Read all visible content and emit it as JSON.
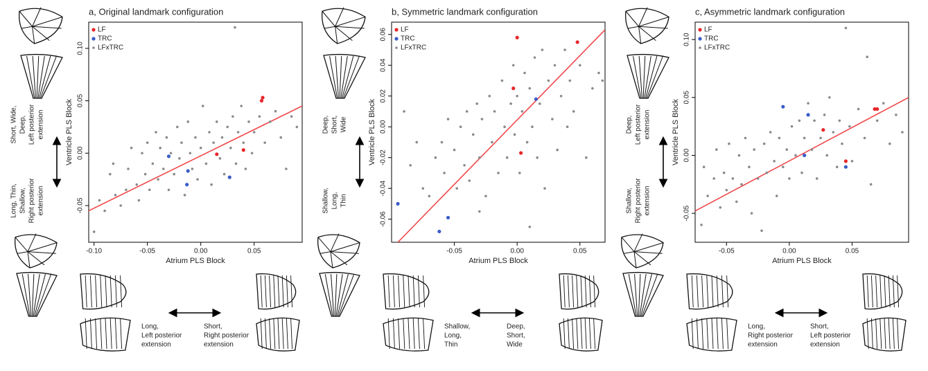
{
  "chart_data": [
    {
      "type": "scatter",
      "title": "a, Original landmark configuration",
      "xlabel": "Atrium PLS Block",
      "ylabel": "Ventricle PLS Block",
      "xlim": [
        -0.105,
        0.095
      ],
      "ylim": [
        -0.085,
        0.125
      ],
      "xticks": [
        {
          "value": -0.1,
          "label": "-0.10"
        },
        -0.05,
        {
          "value": 0,
          "label": "0.00"
        },
        0.05
      ],
      "yticks": [
        -0.05,
        {
          "value": 0,
          "label": "0.00"
        },
        0.05,
        {
          "value": 0.1,
          "label": "0.10"
        }
      ],
      "legend": "upper left",
      "series": [
        {
          "name": "LF",
          "color": "#e8262a",
          "x": [
            0.058,
            0.057,
            0.04,
            0.015
          ],
          "y": [
            0.053,
            0.05,
            0.003,
            -0.001
          ]
        },
        {
          "name": "TRC",
          "color": "#3a5cc9",
          "x": [
            -0.03,
            -0.012,
            -0.013,
            0.027
          ],
          "y": [
            -0.003,
            -0.017,
            -0.03,
            -0.023
          ]
        },
        {
          "name": "LFxTRC",
          "color": "#8a8a8a",
          "x": [
            -0.1,
            -0.095,
            -0.09,
            -0.085,
            -0.082,
            -0.08,
            -0.075,
            -0.07,
            -0.068,
            -0.065,
            -0.06,
            -0.058,
            -0.055,
            -0.052,
            -0.05,
            -0.048,
            -0.045,
            -0.042,
            -0.04,
            -0.038,
            -0.035,
            -0.032,
            -0.03,
            -0.028,
            -0.025,
            -0.022,
            -0.02,
            -0.018,
            -0.015,
            -0.012,
            -0.01,
            -0.008,
            -0.005,
            -0.003,
            0.0,
            0.002,
            0.005,
            0.008,
            0.01,
            0.012,
            0.015,
            0.018,
            0.02,
            0.022,
            0.025,
            0.028,
            0.03,
            0.032,
            0.033,
            0.035,
            0.038,
            0.04,
            0.042,
            0.045,
            0.048,
            0.05,
            0.055,
            0.06,
            0.065,
            0.07,
            0.075,
            0.08,
            0.085,
            0.09
          ],
          "y": [
            -0.075,
            -0.045,
            -0.055,
            -0.02,
            -0.01,
            -0.04,
            -0.05,
            -0.035,
            -0.015,
            0.005,
            -0.03,
            -0.045,
            0.0,
            -0.02,
            0.01,
            -0.035,
            -0.01,
            0.02,
            -0.025,
            0.005,
            -0.015,
            0.015,
            -0.035,
            0.0,
            -0.02,
            0.025,
            -0.005,
            0.01,
            -0.04,
            0.03,
            0.0,
            -0.015,
            0.015,
            -0.025,
            0.005,
            0.045,
            -0.01,
            0.02,
            -0.03,
            0.01,
            0.03,
            -0.005,
            0.015,
            -0.02,
            0.025,
            0.005,
            0.035,
            0.12,
            -0.01,
            0.02,
            0.045,
            0.01,
            -0.015,
            0.03,
            0.0,
            0.02,
            0.035,
            0.01,
            0.03,
            0.04,
            0.015,
            -0.015,
            0.035,
            0.025
          ]
        }
      ],
      "fit_line": {
        "color": "#f0484a",
        "x": [
          -0.105,
          0.095
        ],
        "y": [
          -0.055,
          0.045
        ]
      },
      "y_annotation_top": [
        "Short, Wide,",
        "Deep,",
        "Left posterior",
        "extension"
      ],
      "y_annotation_bottom": [
        "Long, Thin,",
        "Shallow,",
        "Right posterior",
        "extension"
      ],
      "x_annotation_left": [
        "Long,",
        "Left posterior",
        "extension"
      ],
      "x_annotation_right": [
        "Short,",
        "Right posterior",
        "extension"
      ]
    },
    {
      "type": "scatter",
      "title": "b, Symmetric landmark configuration",
      "xlabel": "Atrium PLS Block",
      "ylabel": "Ventricle PLS Block",
      "xlim": [
        -0.1,
        0.07
      ],
      "ylim": [
        -0.075,
        0.068
      ],
      "xticks": [
        -0.05,
        {
          "value": 0,
          "label": "0.00"
        },
        0.05
      ],
      "yticks": [
        -0.06,
        -0.04,
        -0.02,
        {
          "value": 0,
          "label": "0.00"
        },
        0.02,
        0.04,
        0.06
      ],
      "legend": "upper left",
      "series": [
        {
          "name": "LF",
          "color": "#e8262a",
          "x": [
            0.0,
            0.048,
            -0.003,
            0.003
          ],
          "y": [
            0.058,
            0.055,
            0.025,
            -0.017
          ]
        },
        {
          "name": "TRC",
          "color": "#3a5cc9",
          "x": [
            -0.095,
            -0.062,
            -0.055,
            0.015
          ],
          "y": [
            -0.05,
            -0.068,
            -0.059,
            0.018
          ]
        },
        {
          "name": "LFxTRC",
          "color": "#8a8a8a",
          "x": [
            -0.085,
            -0.08,
            -0.075,
            -0.07,
            -0.065,
            -0.06,
            -0.058,
            -0.055,
            -0.05,
            -0.048,
            -0.045,
            -0.042,
            -0.04,
            -0.038,
            -0.035,
            -0.032,
            -0.03,
            -0.028,
            -0.025,
            -0.022,
            -0.02,
            -0.018,
            -0.015,
            -0.012,
            -0.01,
            -0.008,
            -0.005,
            -0.003,
            -0.002,
            0.0,
            0.002,
            0.004,
            0.006,
            0.008,
            0.01,
            0.012,
            0.014,
            0.016,
            0.018,
            0.02,
            0.022,
            0.025,
            0.028,
            0.03,
            0.032,
            0.035,
            0.038,
            0.04,
            0.042,
            0.045,
            0.05,
            0.055,
            0.06,
            0.065,
            0.068,
            -0.09,
            -0.03,
            0.01
          ],
          "y": [
            -0.025,
            -0.01,
            -0.04,
            -0.045,
            -0.02,
            -0.01,
            -0.03,
            0.005,
            -0.015,
            -0.04,
            0.0,
            -0.025,
            0.01,
            -0.035,
            -0.005,
            0.015,
            -0.02,
            0.005,
            -0.045,
            0.02,
            -0.01,
            0.01,
            -0.03,
            0.03,
            0.0,
            -0.02,
            0.015,
            0.04,
            -0.005,
            0.02,
            -0.03,
            0.01,
            0.035,
            -0.01,
            0.025,
            0.0,
            0.045,
            -0.02,
            0.015,
            0.05,
            -0.04,
            0.03,
            0.005,
            0.04,
            -0.015,
            0.02,
            0.05,
            0.0,
            0.03,
            0.01,
            0.04,
            -0.02,
            0.025,
            0.035,
            0.03,
            0.01,
            -0.055,
            -0.065
          ]
        }
      ],
      "fit_line": {
        "color": "#f0484a",
        "x": [
          -0.095,
          0.07
        ],
        "y": [
          -0.075,
          0.063
        ]
      },
      "y_annotation_top": [
        "Deep,",
        "Short,",
        "Wide"
      ],
      "y_annotation_bottom": [
        "Shallow,",
        "Long,",
        "Thin"
      ],
      "x_annotation_left": [
        "Shallow,",
        "Long,",
        "Thin"
      ],
      "x_annotation_right": [
        "Deep,",
        "Short,",
        "Wide"
      ]
    },
    {
      "type": "scatter",
      "title": "c, Asymmetric landmark configuration",
      "xlabel": "Atrium PLS Block",
      "ylabel": "Ventricle PLS Block",
      "xlim": [
        -0.075,
        0.095
      ],
      "ylim": [
        -0.075,
        0.115
      ],
      "xticks": [
        -0.05,
        {
          "value": 0,
          "label": "0.00"
        },
        0.05
      ],
      "yticks": [
        -0.05,
        {
          "value": 0,
          "label": "0.00"
        },
        0.05,
        {
          "value": 0.1,
          "label": "0.10"
        }
      ],
      "legend": "upper left",
      "series": [
        {
          "name": "LF",
          "color": "#e8262a",
          "x": [
            0.068,
            0.07,
            0.027,
            0.045
          ],
          "y": [
            0.04,
            0.04,
            0.022,
            -0.005
          ]
        },
        {
          "name": "TRC",
          "color": "#3a5cc9",
          "x": [
            -0.005,
            0.015,
            0.012,
            0.045
          ],
          "y": [
            0.042,
            0.035,
            0.0,
            -0.01
          ]
        },
        {
          "name": "LFxTRC",
          "color": "#8a8a8a",
          "x": [
            -0.07,
            -0.068,
            -0.065,
            -0.06,
            -0.058,
            -0.055,
            -0.052,
            -0.05,
            -0.048,
            -0.045,
            -0.042,
            -0.04,
            -0.038,
            -0.035,
            -0.032,
            -0.03,
            -0.028,
            -0.025,
            -0.022,
            -0.02,
            -0.018,
            -0.015,
            -0.012,
            -0.01,
            -0.008,
            -0.005,
            -0.002,
            0.0,
            0.002,
            0.005,
            0.008,
            0.01,
            0.012,
            0.015,
            0.018,
            0.02,
            0.022,
            0.025,
            0.028,
            0.03,
            0.032,
            0.035,
            0.038,
            0.04,
            0.042,
            0.045,
            0.048,
            0.05,
            0.055,
            0.06,
            0.062,
            0.065,
            0.07,
            0.075,
            0.08,
            0.085,
            0.09
          ],
          "y": [
            -0.06,
            -0.01,
            -0.035,
            -0.02,
            0.005,
            -0.045,
            -0.015,
            -0.03,
            0.01,
            -0.02,
            -0.04,
            0.0,
            -0.025,
            0.015,
            -0.01,
            -0.05,
            0.005,
            -0.02,
            -0.065,
            0.01,
            -0.015,
            0.02,
            -0.005,
            -0.035,
            0.015,
            -0.01,
            0.005,
            -0.02,
            0.025,
            0.0,
            0.03,
            -0.015,
            0.015,
            0.045,
            0.005,
            0.03,
            -0.02,
            0.015,
            0.035,
            0.0,
            0.05,
            0.02,
            -0.01,
            0.03,
            0.01,
            0.11,
            0.025,
            -0.005,
            0.04,
            0.015,
            0.085,
            -0.025,
            0.03,
            0.045,
            0.01,
            0.035,
            0.02
          ]
        }
      ],
      "fit_line": {
        "color": "#f0484a",
        "x": [
          -0.075,
          0.095
        ],
        "y": [
          -0.048,
          0.05
        ]
      },
      "y_annotation_top": [
        "Deep,",
        "Left posterior",
        "extension"
      ],
      "y_annotation_bottom": [
        "Shallow,",
        "Right posterior",
        "extension"
      ],
      "x_annotation_left": [
        "Long,",
        "Right posterior",
        "extension"
      ],
      "x_annotation_right": [
        "Short,",
        "Left posterior",
        "extension"
      ]
    }
  ]
}
